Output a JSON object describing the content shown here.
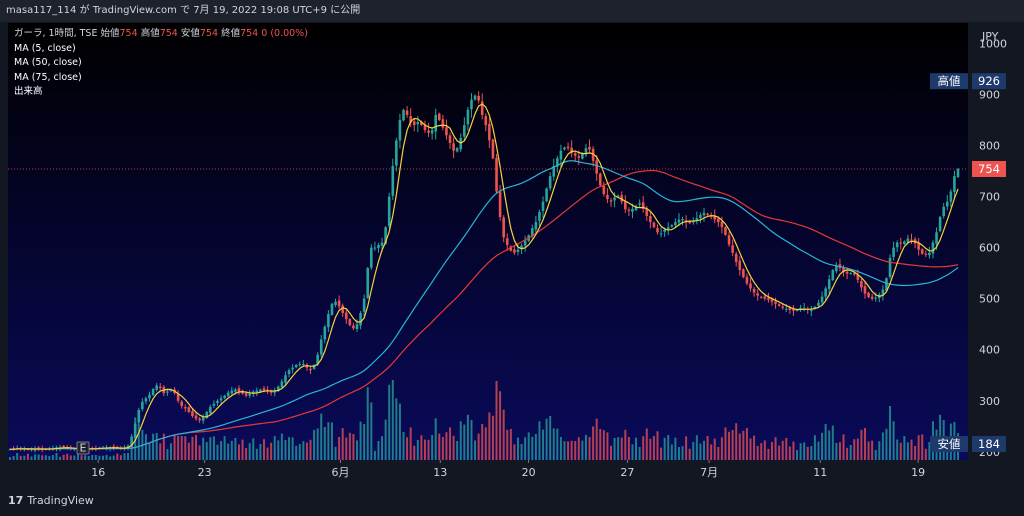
{
  "header": {
    "publisher": "masa117_114",
    "via": "が",
    "site": "TradingView.com",
    "date_prefix": "で",
    "datetime": "7月 19, 2022 19:08 UTC+9",
    "suffix": "に公開"
  },
  "legend": {
    "symbol_line": "ガーラ, 1時間, TSE",
    "open_label": "始値",
    "open_value": "754",
    "high_label": "高値",
    "high_value": "754",
    "low_label": "安値",
    "low_value": "754",
    "close_label": "終値",
    "close_value": "754",
    "change": "0 (0.00%)",
    "ma5": "MA (5, close)",
    "ma50": "MA (50, close)",
    "ma75": "MA (75, close)",
    "volume": "出来高"
  },
  "tags": {
    "high_label": "高値",
    "high_value": "926",
    "last_value": "754",
    "low_label": "安値",
    "low_value": "184"
  },
  "footer": {
    "brand": "TradingView",
    "event_marker": "E"
  },
  "colors": {
    "up": "#26a69a",
    "down": "#ef5350",
    "ma5": "#f7d23c",
    "ma50": "#29b6d6",
    "ma75": "#e53935",
    "tag_bg": "#1e3a6b",
    "last_tag_bg": "#ef5350"
  },
  "chart_data": {
    "type": "candlestick",
    "currency": "JPY",
    "ylim": [
      184,
      1040
    ],
    "y_ticks": [
      1000,
      900,
      800,
      700,
      600,
      500,
      400,
      300,
      200
    ],
    "x_ticks": [
      "16",
      "23",
      "6月",
      "13",
      "20",
      "27",
      "7月",
      "11",
      "19"
    ],
    "high": 926,
    "low": 184,
    "last": 754,
    "series": [
      {
        "name": "MA (5, close)"
      },
      {
        "name": "MA (50, close)"
      },
      {
        "name": "MA (75, close)"
      },
      {
        "name": "出来高"
      }
    ],
    "closes": [
      205,
      205,
      207,
      206,
      206,
      205,
      205,
      206,
      206,
      205,
      205,
      206,
      207,
      209,
      209,
      208,
      207,
      206,
      206,
      206,
      205,
      205,
      206,
      207,
      207,
      208,
      208,
      208,
      208,
      208,
      207,
      206,
      208,
      212,
      230,
      255,
      282,
      298,
      305,
      312,
      323,
      330,
      325,
      315,
      318,
      322,
      315,
      300,
      290,
      285,
      278,
      270,
      265,
      262,
      268,
      278,
      288,
      294,
      300,
      305,
      310,
      316,
      320,
      322,
      318,
      314,
      310,
      314,
      318,
      320,
      322,
      320,
      318,
      316,
      320,
      328,
      338,
      350,
      360,
      365,
      370,
      372,
      372,
      365,
      360,
      370,
      390,
      420,
      445,
      470,
      490,
      494,
      485,
      472,
      460,
      448,
      442,
      450,
      472,
      500,
      560,
      600,
      600,
      605,
      610,
      640,
      700,
      760,
      810,
      850,
      870,
      860,
      845,
      840,
      846,
      840,
      830,
      825,
      830,
      860,
      850,
      835,
      820,
      805,
      790,
      795,
      815,
      840,
      870,
      890,
      898,
      888,
      860,
      840,
      810,
      775,
      710,
      660,
      620,
      605,
      594,
      590,
      596,
      604,
      614,
      624,
      638,
      650,
      670,
      690,
      716,
      740,
      760,
      775,
      790,
      796,
      795,
      785,
      780,
      776,
      785,
      795,
      792,
      770,
      745,
      722,
      705,
      695,
      690,
      698,
      702,
      690,
      675,
      672,
      676,
      682,
      687,
      676,
      662,
      650,
      640,
      630,
      628,
      635,
      640,
      644,
      650,
      655,
      656,
      650,
      648,
      652,
      658,
      664,
      668,
      664,
      660,
      655,
      650,
      640,
      625,
      606,
      590,
      572,
      556,
      542,
      530,
      520,
      512,
      506,
      502,
      500,
      498,
      494,
      490,
      486,
      482,
      480,
      478,
      476,
      478,
      482,
      482,
      478,
      478,
      484,
      492,
      504,
      520,
      538,
      556,
      565,
      560,
      552,
      549,
      550,
      548,
      537,
      522,
      510,
      503,
      500,
      502,
      508,
      518,
      540,
      580,
      600,
      610,
      608,
      612,
      618,
      614,
      608,
      596,
      588,
      586,
      590,
      610,
      630,
      660,
      680,
      690,
      710,
      740,
      754
    ]
  }
}
